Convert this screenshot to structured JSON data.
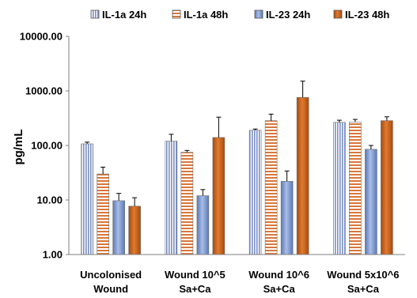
{
  "chart_data": {
    "type": "bar",
    "title": "",
    "xlabel": "",
    "ylabel": "pg/mL",
    "y_scale": "log",
    "ylim": [
      1,
      10000
    ],
    "y_ticks": [
      "1.00",
      "10.00",
      "100.00",
      "1000.00",
      "10000.00"
    ],
    "grid": false,
    "legend_position": "top",
    "categories": [
      [
        "Uncolonised",
        "Wound"
      ],
      [
        "Wound 10^5",
        "Sa+Ca"
      ],
      [
        "Wound 10^6",
        "Sa+Ca"
      ],
      [
        "Wound 5x10^6",
        "Sa+Ca"
      ]
    ],
    "series": [
      {
        "name": "IL-1a 24h",
        "pattern": "vertical-stripes",
        "color": "#7b8fc7",
        "values": [
          107,
          120,
          190,
          265
        ],
        "errors": [
          8,
          40,
          10,
          25
        ]
      },
      {
        "name": "IL-1a 48h",
        "pattern": "horizontal-stripes",
        "color": "#d9773a",
        "values": [
          30,
          75,
          285,
          270
        ],
        "errors": [
          10,
          6,
          90,
          30
        ]
      },
      {
        "name": "IL-23 24h",
        "pattern": "solid",
        "color": "#8eaadb",
        "values": [
          9.7,
          12,
          22,
          85
        ],
        "errors": [
          3.5,
          3.5,
          12,
          15
        ]
      },
      {
        "name": "IL-23 48h",
        "pattern": "solid",
        "color": "#c55a11",
        "values": [
          7.7,
          140,
          760,
          285
        ],
        "errors": [
          3.3,
          190,
          750,
          50
        ]
      }
    ]
  }
}
